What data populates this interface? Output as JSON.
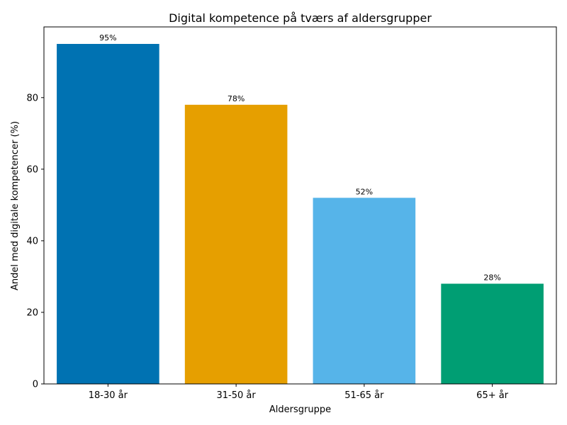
{
  "chart_data": {
    "type": "bar",
    "title": "Digital kompetence på tværs af aldersgrupper",
    "xlabel": "Aldersgruppe",
    "ylabel": "Andel med digitale kompetencer (%)",
    "categories": [
      "18-30 år",
      "31-50 år",
      "51-65 år",
      "65+ år"
    ],
    "values": [
      95,
      78,
      52,
      28
    ],
    "data_labels": [
      "95%",
      "78%",
      "52%",
      "28%"
    ],
    "colors": [
      "#0072B2",
      "#E69F00",
      "#56B4E9",
      "#009E73"
    ],
    "ylim": [
      0,
      99.75
    ],
    "yticks": [
      0,
      20,
      40,
      60,
      80
    ],
    "ytick_labels": [
      "0",
      "20",
      "40",
      "60",
      "80"
    ],
    "grid": false,
    "legend": "none"
  }
}
